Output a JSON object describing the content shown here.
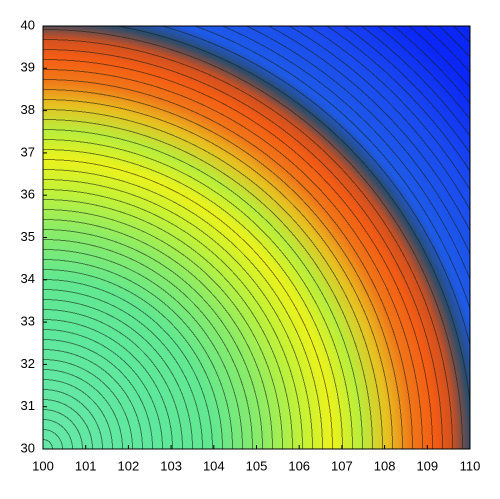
{
  "chart_data": {
    "type": "contour",
    "xlim": [
      100,
      110
    ],
    "xticks": [
      100,
      101,
      102,
      103,
      104,
      105,
      106,
      107,
      108,
      109,
      110
    ],
    "ylim": [
      30,
      40
    ],
    "yticks": [
      30,
      31,
      32,
      33,
      34,
      35,
      36,
      37,
      38,
      39,
      40
    ]
  }
}
